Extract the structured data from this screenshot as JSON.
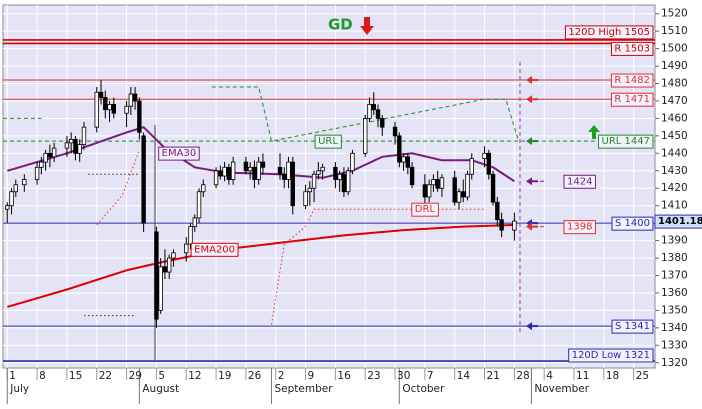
{
  "chart_data": {
    "type": "candlestick",
    "signal": "GD",
    "xlim": [
      "06-30",
      "11-30"
    ],
    "ylim": [
      1317,
      1525
    ],
    "yticks": [
      1320,
      1330,
      1340,
      1350,
      1360,
      1370,
      1380,
      1390,
      1400,
      1410,
      1420,
      1430,
      1440,
      1450,
      1460,
      1470,
      1480,
      1490,
      1500,
      1510,
      1520
    ],
    "xticks": [
      {
        "value": "07-01",
        "label": "1"
      },
      {
        "value": "07-08",
        "label": "8"
      },
      {
        "value": "07-15",
        "label": "15"
      },
      {
        "value": "07-22",
        "label": "22"
      },
      {
        "value": "07-29",
        "label": "29"
      },
      {
        "value": "08-05",
        "label": "5"
      },
      {
        "value": "08-12",
        "label": "12"
      },
      {
        "value": "08-19",
        "label": "19"
      },
      {
        "value": "08-26",
        "label": "26"
      },
      {
        "value": "09-02",
        "label": "2"
      },
      {
        "value": "09-09",
        "label": "9"
      },
      {
        "value": "09-16",
        "label": "16"
      },
      {
        "value": "09-23",
        "label": "23"
      },
      {
        "value": "09-30",
        "label": "30"
      },
      {
        "value": "10-07",
        "label": "7"
      },
      {
        "value": "10-14",
        "label": "14"
      },
      {
        "value": "10-21",
        "label": "21"
      },
      {
        "value": "10-28",
        "label": "28"
      },
      {
        "value": "11-04",
        "label": "4"
      },
      {
        "value": "11-11",
        "label": "11"
      },
      {
        "value": "11-18",
        "label": "18"
      },
      {
        "value": "11-25",
        "label": "25"
      }
    ],
    "months": [
      {
        "value": "07-01",
        "label": "July"
      },
      {
        "value": "08-01",
        "label": "August"
      },
      {
        "value": "09-01",
        "label": "September"
      },
      {
        "value": "10-01",
        "label": "October"
      },
      {
        "value": "11-01",
        "label": "November"
      }
    ],
    "grid": true,
    "candles": {
      "up_color": "#ffffff",
      "down_color": "#000000",
      "x": [
        "07-01",
        "07-02",
        "07-03",
        "07-05",
        "07-08",
        "07-09",
        "07-10",
        "07-11",
        "07-12",
        "07-15",
        "07-16",
        "07-17",
        "07-18",
        "07-19",
        "07-22",
        "07-23",
        "07-24",
        "07-25",
        "07-26",
        "07-29",
        "07-30",
        "07-31",
        "08-01",
        "08-02",
        "08-05",
        "08-06",
        "08-07",
        "08-08",
        "08-09",
        "08-12",
        "08-13",
        "08-14",
        "08-15",
        "08-16",
        "08-19",
        "08-20",
        "08-21",
        "08-22",
        "08-23",
        "08-26",
        "08-27",
        "08-28",
        "08-29",
        "08-30",
        "09-03",
        "09-04",
        "09-05",
        "09-06",
        "09-09",
        "09-10",
        "09-11",
        "09-12",
        "09-13",
        "09-16",
        "09-17",
        "09-18",
        "09-19",
        "09-20",
        "09-23",
        "09-24",
        "09-25",
        "09-26",
        "09-27",
        "09-30",
        "10-01",
        "10-02",
        "10-03",
        "10-04",
        "10-07",
        "10-08",
        "10-09",
        "10-10",
        "10-11",
        "10-14",
        "10-15",
        "10-16",
        "10-17",
        "10-18",
        "10-21",
        "10-22",
        "10-23",
        "10-24",
        "10-25",
        "10-28"
      ],
      "open": [
        1408,
        1410,
        1418,
        1422,
        1425,
        1432,
        1435,
        1440,
        1438,
        1443,
        1446,
        1448,
        1440,
        1445,
        1455,
        1475,
        1472,
        1465,
        1468,
        1463,
        1467,
        1474,
        1470,
        1450,
        1395,
        1350,
        1375,
        1372,
        1380,
        1383,
        1388,
        1398,
        1403,
        1418,
        1422,
        1430,
        1427,
        1432,
        1425,
        1435,
        1430,
        1432,
        1425,
        1435,
        1432,
        1428,
        1425,
        1435,
        1410,
        1418,
        1420,
        1428,
        1430,
        1432,
        1425,
        1428,
        1418,
        1430,
        1440,
        1460,
        1468,
        1465,
        1460,
        1455,
        1450,
        1435,
        1438,
        1432,
        1422,
        1415,
        1422,
        1425,
        1420,
        1426,
        1412,
        1418,
        1415,
        1428,
        1437,
        1440,
        1428,
        1412,
        1402,
        1396
      ],
      "high": [
        1412,
        1420,
        1425,
        1428,
        1435,
        1438,
        1442,
        1445,
        1446,
        1450,
        1452,
        1450,
        1448,
        1458,
        1478,
        1482,
        1476,
        1470,
        1472,
        1470,
        1478,
        1478,
        1472,
        1452,
        1398,
        1380,
        1385,
        1382,
        1385,
        1392,
        1400,
        1405,
        1420,
        1425,
        1432,
        1433,
        1435,
        1434,
        1438,
        1438,
        1435,
        1436,
        1438,
        1440,
        1440,
        1432,
        1438,
        1438,
        1422,
        1424,
        1430,
        1435,
        1434,
        1435,
        1430,
        1432,
        1432,
        1442,
        1462,
        1472,
        1475,
        1468,
        1462,
        1458,
        1452,
        1440,
        1440,
        1435,
        1428,
        1425,
        1428,
        1430,
        1428,
        1430,
        1420,
        1425,
        1430,
        1440,
        1444,
        1442,
        1430,
        1415,
        1406,
        1406
      ],
      "low": [
        1400,
        1405,
        1415,
        1418,
        1422,
        1428,
        1430,
        1432,
        1435,
        1438,
        1440,
        1436,
        1435,
        1442,
        1452,
        1468,
        1460,
        1458,
        1460,
        1455,
        1462,
        1465,
        1448,
        1395,
        1340,
        1348,
        1368,
        1368,
        1375,
        1378,
        1385,
        1395,
        1400,
        1415,
        1420,
        1425,
        1424,
        1422,
        1422,
        1428,
        1425,
        1420,
        1422,
        1428,
        1425,
        1420,
        1420,
        1405,
        1408,
        1410,
        1412,
        1425,
        1425,
        1420,
        1418,
        1415,
        1416,
        1428,
        1438,
        1458,
        1462,
        1455,
        1450,
        1445,
        1432,
        1430,
        1428,
        1420,
        1410,
        1412,
        1418,
        1418,
        1415,
        1410,
        1408,
        1412,
        1413,
        1425,
        1432,
        1425,
        1410,
        1398,
        1392,
        1390
      ],
      "close": [
        1410,
        1418,
        1422,
        1425,
        1432,
        1435,
        1440,
        1438,
        1443,
        1446,
        1448,
        1440,
        1445,
        1455,
        1475,
        1472,
        1465,
        1468,
        1463,
        1467,
        1474,
        1470,
        1452,
        1400,
        1345,
        1375,
        1372,
        1380,
        1383,
        1388,
        1398,
        1403,
        1418,
        1422,
        1430,
        1427,
        1432,
        1425,
        1435,
        1430,
        1432,
        1425,
        1435,
        1432,
        1428,
        1425,
        1435,
        1410,
        1418,
        1420,
        1428,
        1430,
        1432,
        1425,
        1428,
        1418,
        1430,
        1440,
        1460,
        1468,
        1465,
        1460,
        1455,
        1450,
        1435,
        1438,
        1432,
        1422,
        1415,
        1422,
        1425,
        1420,
        1426,
        1412,
        1418,
        1415,
        1428,
        1437,
        1440,
        1428,
        1412,
        1402,
        1396,
        1401.18
      ]
    },
    "lines": [
      {
        "name": "EMA30",
        "color": "#7a1a7a",
        "style": "solid",
        "x": [
          "07-01",
          "07-15",
          "07-29",
          "08-02",
          "08-07",
          "08-14",
          "08-21",
          "09-03",
          "09-13",
          "09-20",
          "09-27",
          "10-04",
          "10-11",
          "10-18",
          "10-23",
          "10-28"
        ],
        "values": [
          1430,
          1440,
          1452,
          1455,
          1443,
          1432,
          1429,
          1428,
          1426,
          1430,
          1438,
          1440,
          1436,
          1436,
          1432,
          1424
        ]
      },
      {
        "name": "EMA200",
        "color": "#e00000",
        "style": "solid",
        "x": [
          "07-01",
          "07-15",
          "07-29",
          "08-07",
          "08-21",
          "09-04",
          "09-18",
          "10-02",
          "10-16",
          "10-28"
        ],
        "values": [
          1352,
          1362,
          1373,
          1378,
          1385,
          1389,
          1393,
          1396,
          1398,
          1399
        ]
      },
      {
        "name": "DRL",
        "color": "#e03030",
        "style": "dotted",
        "x": [
          "09-01",
          "09-04",
          "09-09",
          "09-11",
          "10-07",
          "10-21"
        ],
        "values": [
          1342,
          1388,
          1398,
          1408,
          1408,
          1408
        ]
      },
      {
        "color": "#e03030",
        "style": "dotted",
        "x": [
          "07-22",
          "07-28",
          "08-01"
        ],
        "values": [
          1399,
          1416,
          1442
        ]
      },
      {
        "color": "#228b22",
        "style": "dashed",
        "x": [
          "06-30",
          "07-09",
          "07-10",
          "08-18",
          "08-29",
          "09-01",
          "10-21",
          "10-26",
          "10-29"
        ],
        "values": [
          1460,
          1460,
          null,
          1478,
          1478,
          1447,
          1471,
          1471,
          1447
        ]
      },
      {
        "color": "#333333",
        "style": "dotted",
        "x": [
          "07-20",
          "08-01"
        ],
        "values": [
          1428,
          1428
        ]
      },
      {
        "color": "#333333",
        "style": "dotted",
        "x": [
          "07-19",
          "07-31"
        ],
        "values": [
          1347,
          1347
        ]
      }
    ],
    "levels": [
      {
        "label": "120D High 1505",
        "value": 1505,
        "color": "#cc0000",
        "style": "solid",
        "thick": true
      },
      {
        "label": "R 1503",
        "value": 1503,
        "color": "#cc0000",
        "style": "solid",
        "thick": true
      },
      {
        "label": "R 1482",
        "value": 1482,
        "color": "#e03030",
        "style": "solid",
        "arrow": true
      },
      {
        "label": "R 1471",
        "value": 1471,
        "color": "#e03030",
        "style": "solid",
        "arrow": true
      },
      {
        "label": "URL 1447",
        "name": "URL",
        "value": 1447,
        "color": "#228b22",
        "style": "dashed",
        "arrow": true
      },
      {
        "label": "S 1400",
        "value": 1400,
        "color": "#2a2ab0",
        "style": "solid",
        "arrow": true
      },
      {
        "label": "S 1341",
        "value": 1341,
        "color": "#2a2ab0",
        "style": "solid",
        "arrow": true
      },
      {
        "label": "120D Low 1321",
        "value": 1321,
        "color": "#2a2ab0",
        "style": "solid",
        "thick": true
      }
    ],
    "markers": [
      {
        "label": "1424",
        "value": 1424,
        "color": "#7a1a7a"
      },
      {
        "label": "1398",
        "value": 1398,
        "color": "#e03030"
      }
    ]
  }
}
